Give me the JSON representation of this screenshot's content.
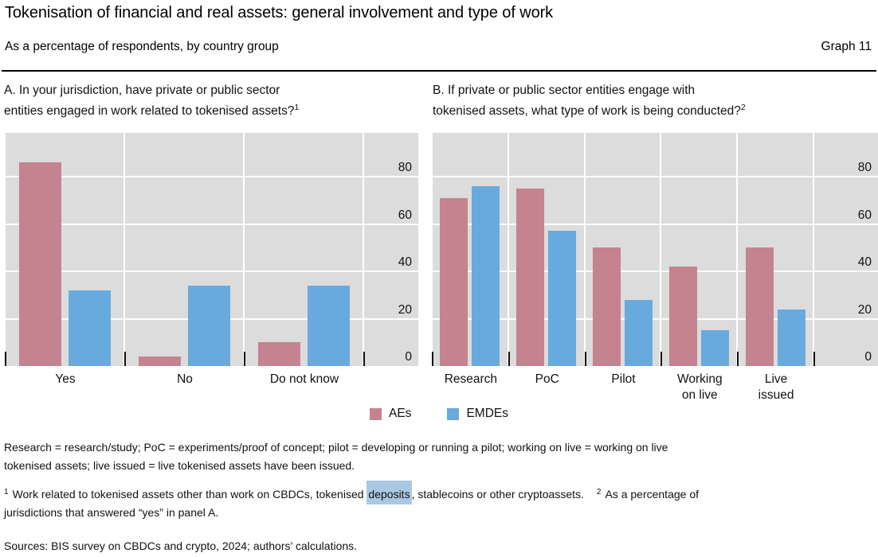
{
  "header": {
    "title": "Tokenisation of financial and real assets: general involvement and type of work",
    "subtitle": "As a percentage of respondents, by country group",
    "graph_label": "Graph 11"
  },
  "colors": {
    "aes": "#c5828f",
    "emdes": "#69aade",
    "plot_background": "#dcdcdc",
    "gridline": "#ffffff",
    "highlight": "#a9c9e2"
  },
  "chart_data": [
    {
      "type": "bar",
      "panel": "A",
      "title": "A. In your jurisdiction, have private or public sector\nentities engaged in work related to tokenised assets?",
      "title_sup": "1",
      "categories": [
        "Yes",
        "No",
        "Do not know"
      ],
      "series": [
        {
          "name": "AEs",
          "color": "#c5828f",
          "values": [
            86,
            4,
            10
          ]
        },
        {
          "name": "EMDEs",
          "color": "#69aade",
          "values": [
            32,
            34,
            34
          ]
        }
      ],
      "ylim": [
        0,
        98.5
      ],
      "yticks": [
        0,
        20,
        40,
        60,
        80
      ],
      "ylabel": "",
      "grid": true,
      "legend_position": "bottom-center"
    },
    {
      "type": "bar",
      "panel": "B",
      "title": "B. If private or public sector entities engage with\ntokenised assets, what type of work is being conducted?",
      "title_sup": "2",
      "categories": [
        "Research",
        "PoC",
        "Pilot",
        "Working\non live",
        "Live\nissued"
      ],
      "series": [
        {
          "name": "AEs",
          "color": "#c5828f",
          "values": [
            71,
            75,
            50,
            42,
            50
          ]
        },
        {
          "name": "EMDEs",
          "color": "#69aade",
          "values": [
            76,
            57,
            28,
            15,
            24
          ]
        }
      ],
      "ylim": [
        0,
        98.5
      ],
      "yticks": [
        0,
        20,
        40,
        60,
        80
      ],
      "ylabel": "",
      "grid": true,
      "legend_position": "bottom-center"
    }
  ],
  "notes": {
    "definitions": "Research = research/study; PoC = experiments/proof of concept; pilot = developing or running a pilot; working on live = working on live\ntokenised assets; live issued = live tokenised assets have been issued.",
    "footnote1": {
      "marker": "1",
      "pre": "Work related to tokenised assets other than work on CBDCs, tokenised ",
      "highlight": "deposits",
      "post": ", stablecoins or other cryptoassets."
    },
    "footnote2": {
      "marker": "2",
      "text": "As a percentage of\njurisdictions that answered “yes” in panel A."
    },
    "sources": "Sources: BIS survey on CBDCs and crypto, 2024; authors’ calculations."
  }
}
